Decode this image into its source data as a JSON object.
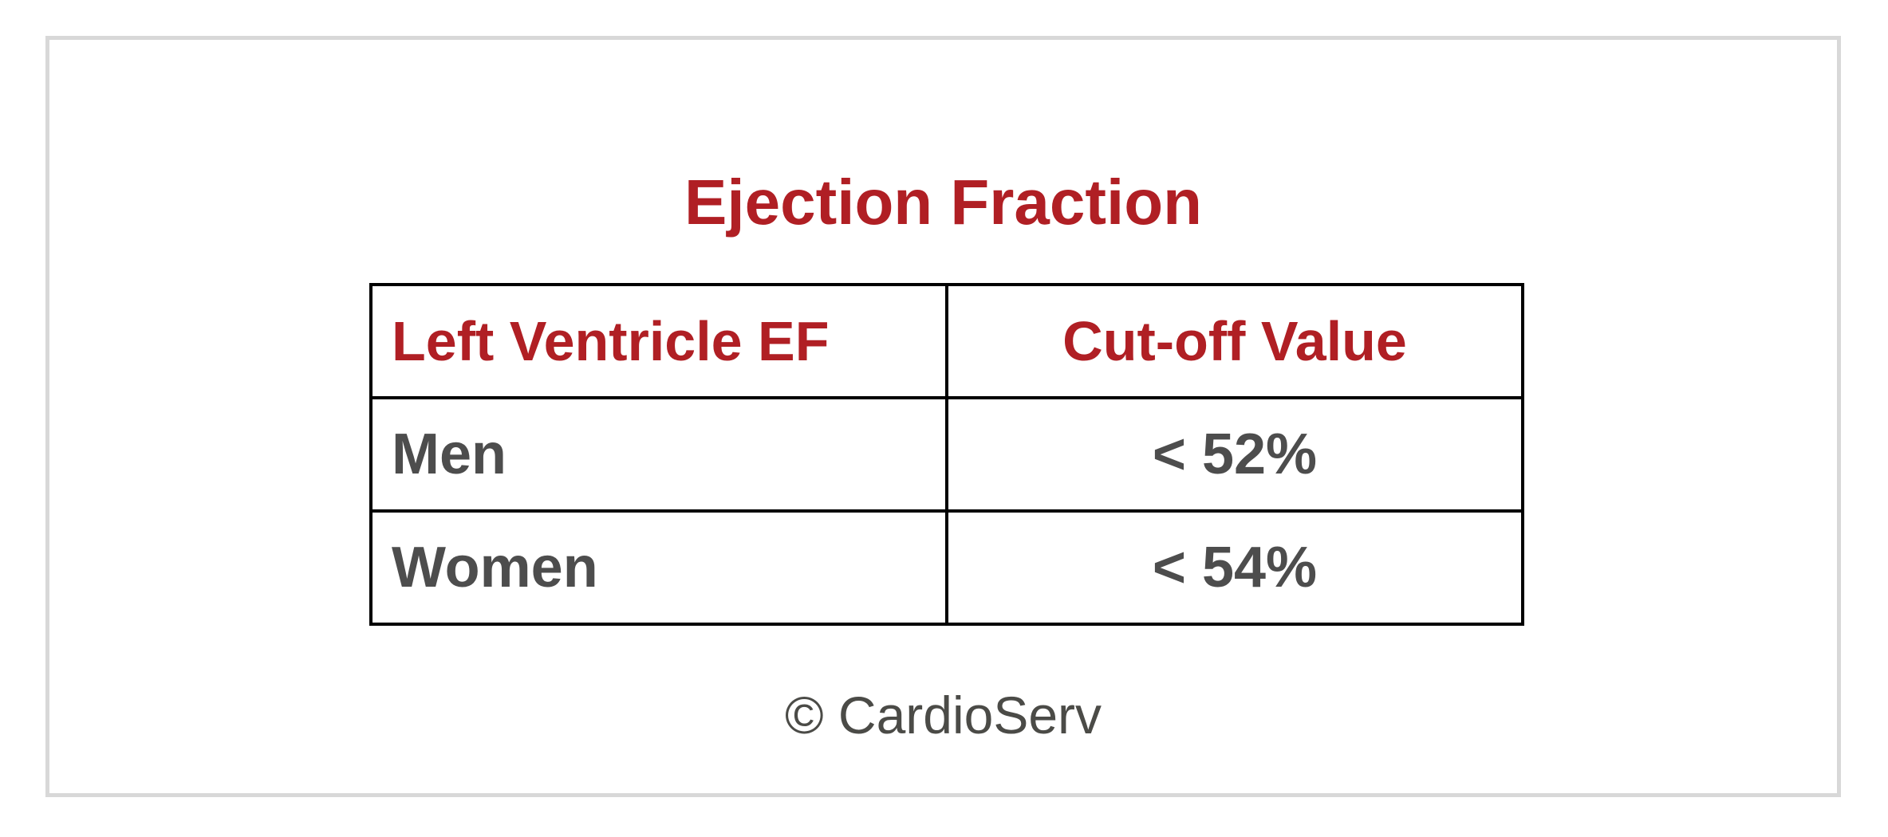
{
  "chart_data": {
    "type": "table",
    "title": "Ejection Fraction",
    "columns": [
      "Left Ventricle EF",
      "Cut-off Value"
    ],
    "rows": [
      [
        "Men",
        "< 52%"
      ],
      [
        "Women",
        "< 54%"
      ]
    ],
    "footer": "© CardioServ",
    "layout_hints": {
      "header_text_color": "matches accent red",
      "value_alignment": "column 1 left, column 2 centered",
      "grid": "all black borders"
    }
  },
  "colors": {
    "accent_red": "#B01F24",
    "body_text_gray": "#4D4D4D",
    "footer_gray": "#4B4B47",
    "card_border_gray": "#D8D8D8",
    "table_border_black": "#000000",
    "background": "#FFFFFF"
  }
}
